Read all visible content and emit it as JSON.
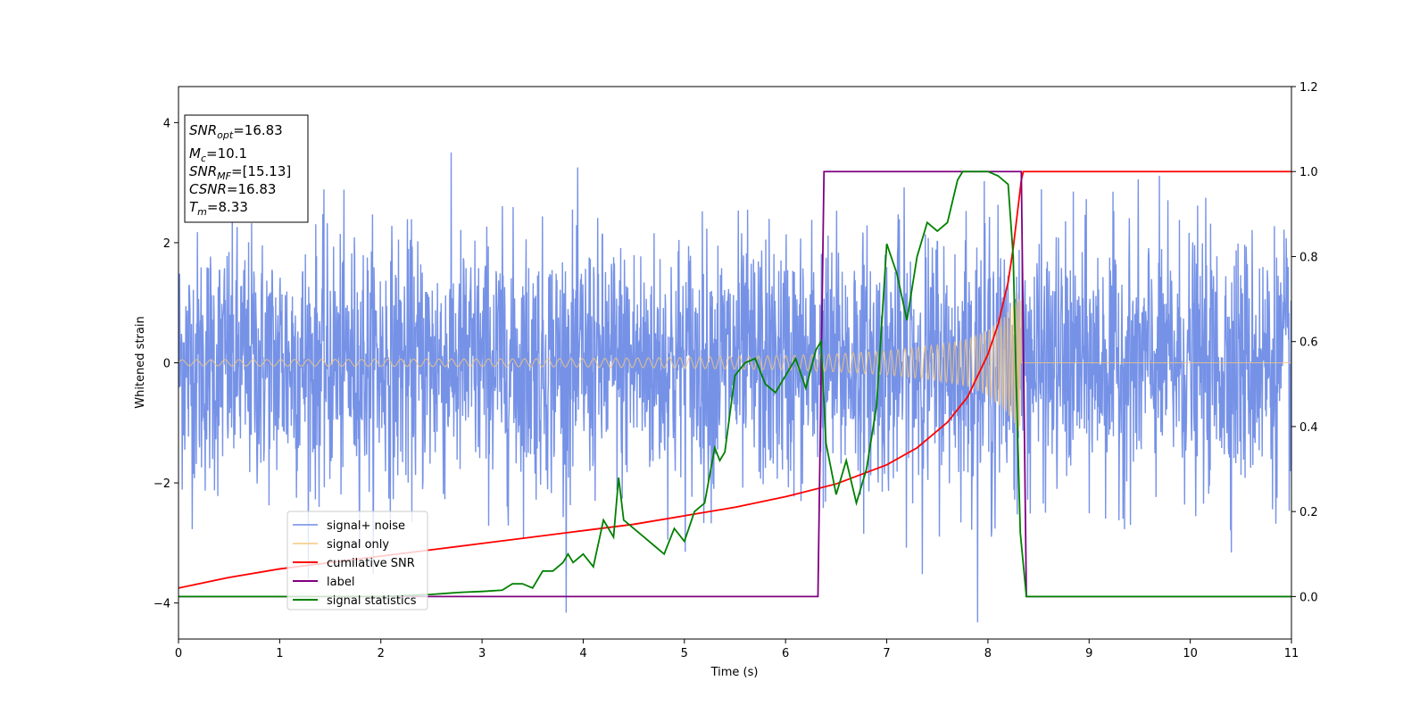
{
  "chart_data": {
    "type": "line",
    "title": "",
    "xlabel": "Time (s)",
    "ylabel": "Whitened strain",
    "xlim": [
      0,
      11
    ],
    "ylim_left": [
      -4.6,
      4.6
    ],
    "ylim_right": [
      -0.1,
      1.2
    ],
    "x_ticks": [
      "0",
      "1",
      "2",
      "3",
      "4",
      "5",
      "6",
      "7",
      "8",
      "9",
      "10",
      "11"
    ],
    "y_ticks_left": [
      "−4",
      "−2",
      "0",
      "2",
      "4"
    ],
    "y_ticks_right": [
      "0.0",
      "0.2",
      "0.4",
      "0.6",
      "0.8",
      "1.0",
      "1.2"
    ],
    "grid": false,
    "legend_position": "lower-left",
    "annotation": {
      "lines": [
        {
          "sym": "SNR",
          "sub": "opt",
          "value": "=16.83"
        },
        {
          "sym": "M",
          "sub": "c",
          "value": "=10.1"
        },
        {
          "sym": "SNR",
          "sub": "MF",
          "value": "=[15.13]"
        },
        {
          "sym": "CSNR",
          "sub": "",
          "value": "=16.83"
        },
        {
          "sym": "T",
          "sub": "m",
          "value": "=8.33"
        }
      ]
    },
    "merger_time": 8.33,
    "series": [
      {
        "name": "signal+ noise",
        "axis": "left",
        "color": "#6f8ce6",
        "description_values": "white noise, std ~1.1 across 0-11 s, plus chirp signal"
      },
      {
        "name": "signal only",
        "axis": "left",
        "color": "#f5c77e",
        "amplitude_envelope": {
          "x": [
            0,
            2,
            4,
            5,
            6,
            6.5,
            7,
            7.5,
            7.8,
            8.0,
            8.2,
            8.33,
            8.34,
            11
          ],
          "y": [
            0.05,
            0.06,
            0.07,
            0.09,
            0.12,
            0.15,
            0.2,
            0.3,
            0.4,
            0.55,
            0.85,
            1.3,
            0,
            0
          ]
        }
      },
      {
        "name": "cumilative SNR",
        "axis": "right",
        "color": "#ff0000",
        "x": [
          0,
          0.5,
          1,
          1.5,
          2,
          2.5,
          3,
          3.5,
          4,
          4.5,
          5,
          5.5,
          6,
          6.5,
          7,
          7.3,
          7.6,
          7.8,
          8.0,
          8.1,
          8.2,
          8.25,
          8.3,
          8.33,
          8.35,
          11
        ],
        "y": [
          0.02,
          0.045,
          0.065,
          0.08,
          0.095,
          0.11,
          0.125,
          0.14,
          0.155,
          0.17,
          0.19,
          0.21,
          0.235,
          0.265,
          0.31,
          0.35,
          0.41,
          0.47,
          0.57,
          0.64,
          0.74,
          0.82,
          0.92,
          0.98,
          1.0,
          1.0
        ]
      },
      {
        "name": "label",
        "axis": "right",
        "color": "#800080",
        "x": [
          0,
          6.32,
          6.38,
          8.33,
          8.38,
          11
        ],
        "y": [
          0,
          0,
          1,
          1,
          0,
          0
        ]
      },
      {
        "name": "signal statistics",
        "axis": "right",
        "color": "#008000",
        "x": [
          0,
          0.5,
          1,
          1.5,
          2,
          2.5,
          2.8,
          3.0,
          3.2,
          3.3,
          3.4,
          3.5,
          3.6,
          3.7,
          3.8,
          3.85,
          3.9,
          4.0,
          4.1,
          4.2,
          4.3,
          4.35,
          4.4,
          4.5,
          4.6,
          4.7,
          4.8,
          4.85,
          4.9,
          5.0,
          5.1,
          5.2,
          5.3,
          5.35,
          5.4,
          5.5,
          5.6,
          5.7,
          5.8,
          5.9,
          6.0,
          6.1,
          6.2,
          6.3,
          6.35,
          6.4,
          6.5,
          6.6,
          6.7,
          6.8,
          6.9,
          7.0,
          7.1,
          7.2,
          7.3,
          7.4,
          7.5,
          7.6,
          7.7,
          7.75,
          7.8,
          7.9,
          8.0,
          8.1,
          8.2,
          8.25,
          8.28,
          8.32,
          8.38,
          11
        ],
        "y": [
          0.0,
          0.0,
          0.0,
          0.0,
          0.0,
          0.005,
          0.01,
          0.012,
          0.015,
          0.03,
          0.03,
          0.02,
          0.06,
          0.06,
          0.08,
          0.1,
          0.08,
          0.1,
          0.07,
          0.18,
          0.14,
          0.28,
          0.18,
          0.16,
          0.14,
          0.12,
          0.1,
          0.13,
          0.16,
          0.13,
          0.2,
          0.22,
          0.35,
          0.32,
          0.34,
          0.52,
          0.55,
          0.56,
          0.5,
          0.48,
          0.52,
          0.56,
          0.49,
          0.58,
          0.6,
          0.36,
          0.24,
          0.32,
          0.22,
          0.3,
          0.45,
          0.83,
          0.76,
          0.65,
          0.8,
          0.88,
          0.86,
          0.88,
          0.98,
          1.0,
          1.0,
          1.0,
          1.0,
          0.99,
          0.97,
          0.8,
          0.5,
          0.15,
          0.0,
          0.0
        ]
      }
    ]
  }
}
